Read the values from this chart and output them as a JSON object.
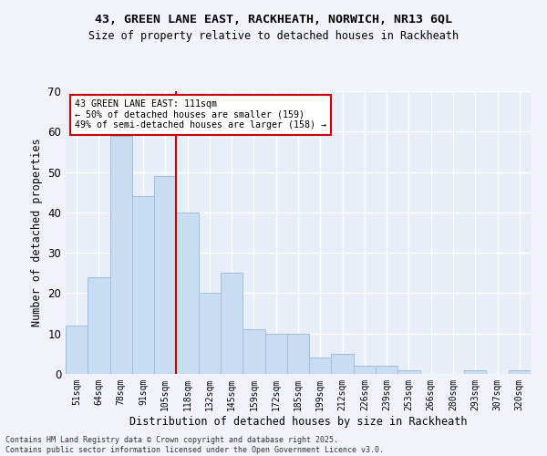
{
  "title_line1": "43, GREEN LANE EAST, RACKHEATH, NORWICH, NR13 6QL",
  "title_line2": "Size of property relative to detached houses in Rackheath",
  "xlabel": "Distribution of detached houses by size in Rackheath",
  "ylabel": "Number of detached properties",
  "categories": [
    "51sqm",
    "64sqm",
    "78sqm",
    "91sqm",
    "105sqm",
    "118sqm",
    "132sqm",
    "145sqm",
    "159sqm",
    "172sqm",
    "185sqm",
    "199sqm",
    "212sqm",
    "226sqm",
    "239sqm",
    "253sqm",
    "266sqm",
    "280sqm",
    "293sqm",
    "307sqm",
    "320sqm"
  ],
  "values": [
    12,
    24,
    59,
    44,
    49,
    40,
    20,
    25,
    11,
    10,
    10,
    4,
    5,
    2,
    2,
    1,
    0,
    0,
    1,
    0,
    1
  ],
  "bar_color": "#c9ddf2",
  "bar_edge_color": "#a0bedd",
  "vline_x": 4.5,
  "vline_color": "#cc0000",
  "annotation_text": "43 GREEN LANE EAST: 111sqm\n← 50% of detached houses are smaller (159)\n49% of semi-detached houses are larger (158) →",
  "annotation_box_color": "#ffffff",
  "annotation_box_edge": "#cc0000",
  "ylim": [
    0,
    70
  ],
  "yticks": [
    0,
    10,
    20,
    30,
    40,
    50,
    60,
    70
  ],
  "background_color": "#e8eef8",
  "fig_background_color": "#f0f4fa",
  "grid_color": "#ffffff",
  "footer_line1": "Contains HM Land Registry data © Crown copyright and database right 2025.",
  "footer_line2": "Contains public sector information licensed under the Open Government Licence v3.0."
}
